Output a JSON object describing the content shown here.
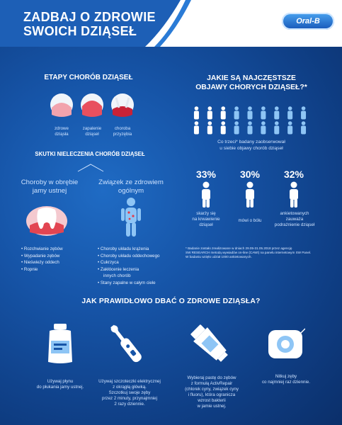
{
  "header": {
    "title_line1": "ZADBAJ O ZDROWIE",
    "title_line2": "SWOICH DZIĄSEŁ",
    "logo": "Oral-B"
  },
  "stages": {
    "title": "ETAPY CHORÓB DZIĄSEŁ",
    "items": [
      {
        "line1": "zdrowe",
        "line2": "dziąsła"
      },
      {
        "line1": "zapalenie",
        "line2": "dziąseł"
      },
      {
        "line1": "choroba",
        "line2": "przyzębia"
      }
    ]
  },
  "symptoms": {
    "title_line1": "JAKIE SĄ NAJCZĘSTSZE",
    "title_line2": "OBJAWY CHORYCH DZIĄSEŁ?*",
    "people_total": 18,
    "people_highlighted": 6,
    "caption_line1": "Co trzeci* badany zaobserwował",
    "caption_line2": "u siebie objawy chorób dziąseł",
    "stats": [
      {
        "value": "33%",
        "line1": "skarży się",
        "line2": "na krwawienie",
        "line3": "dziąseł"
      },
      {
        "value": "30%",
        "line1": "mówi o bólu",
        "line2": "",
        "line3": ""
      },
      {
        "value": "32%",
        "line1": "ankietowanych",
        "line2": "zauważa",
        "line3": "podrażnienie dziąseł"
      }
    ],
    "footnote_line1": "* Badanie zostało zrealizowane w dniach 29.05-31.05.2018 przez agencję",
    "footnote_line2": "SW RESEARCH metodą wywiadów on-line (CAWI) na panelu internetowym SW Panel.",
    "footnote_line3": "W badaniu wzięło udział 1000 ankietowanych."
  },
  "effects": {
    "title": "SKUTKI NIELECZENIA CHORÓB DZIĄSEŁ",
    "left_heading_line1": "Choroby w obrębie",
    "left_heading_line2": "jamy ustnej",
    "right_heading_line1": "Związek ze zdrowiem",
    "right_heading_line2": "ogólnym",
    "left_list": [
      "Rozchwianie zębów",
      "Wypadanie zębów",
      "Nieświeży oddech",
      "Ropnie"
    ],
    "right_list": [
      "Choroby układu krążenia",
      "Choroby układu oddechowego",
      "Cukrzyca",
      "Zakłócenie leczenia",
      "innych chorób",
      "Stany zapalne w całym ciele"
    ]
  },
  "care": {
    "title": "JAK PRAWIDŁOWO DBAĆ O ZDROWE DZIĄSŁA?",
    "items": [
      {
        "lines": [
          "Używaj płynu",
          "do płukania jamy ustnej."
        ]
      },
      {
        "lines": [
          "Używaj szczoteczki elektrycznej",
          "z okrągłą główką.",
          "Szczotkuj swoje zęby",
          "przez 2 minuty, przynajmniej",
          "2 razy dziennie."
        ]
      },
      {
        "lines": [
          "Wybieraj  pastę do zębów",
          "z formułą ActivRepair",
          "(chlorek cyny, związek cyny",
          "i fluoru), która ogranicza",
          "wzrost bakterii",
          "w jamie ustnej."
        ]
      },
      {
        "lines": [
          "Nitkuj zęby",
          "co najmniej raz dziennie."
        ]
      }
    ]
  },
  "colors": {
    "background": "#1654a7",
    "header": "#1d5fb6",
    "gum": "#e23a4a",
    "light_blue": "#8ec5f5"
  }
}
